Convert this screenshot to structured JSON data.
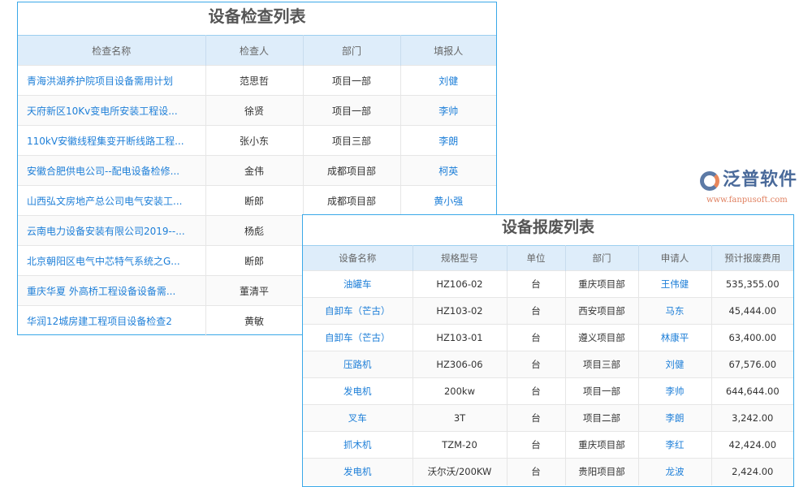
{
  "inspection": {
    "title": "设备检查列表",
    "headers": [
      "检查名称",
      "检查人",
      "部门",
      "填报人"
    ],
    "rows": [
      [
        "青海洪湖养护院项目设备需用计划",
        "范思哲",
        "项目一部",
        "刘健"
      ],
      [
        "天府新区10Kv变电所安装工程设...",
        "徐贤",
        "项目一部",
        "李帅"
      ],
      [
        "110kV安徽线程集变开断线路工程...",
        "张小东",
        "项目三部",
        "李朗"
      ],
      [
        "安徽合肥供电公司--配电设备检修...",
        "金伟",
        "成都项目部",
        "柯英"
      ],
      [
        "山西弘文房地产总公司电气安装工...",
        "断郎",
        "成都项目部",
        "黄小强"
      ],
      [
        "云南电力设备安装有限公司2019--...",
        "杨彪",
        "",
        ""
      ],
      [
        "北京朝阳区电气中芯特气系统之G...",
        "断郎",
        "",
        ""
      ],
      [
        "重庆华夏 外高桥工程设备设备需...",
        "董清平",
        "",
        ""
      ],
      [
        "华润12城房建工程项目设备检查2",
        "黄敏",
        "",
        ""
      ]
    ]
  },
  "scrap": {
    "title": "设备报废列表",
    "headers": [
      "设备名称",
      "规格型号",
      "单位",
      "部门",
      "申请人",
      "预计报废费用"
    ],
    "rows": [
      [
        "油罐车",
        "HZ106-02",
        "台",
        "重庆项目部",
        "王伟健",
        "535,355.00"
      ],
      [
        "自卸车（芒古）",
        "HZ103-02",
        "台",
        "西安项目部",
        "马东",
        "45,444.00"
      ],
      [
        "自卸车（芒古）",
        "HZ103-01",
        "台",
        "遵义项目部",
        "林康平",
        "63,400.00"
      ],
      [
        "压路机",
        "HZ306-06",
        "台",
        "项目三部",
        "刘健",
        "67,576.00"
      ],
      [
        "发电机",
        "200kw",
        "台",
        "项目一部",
        "李帅",
        "644,644.00"
      ],
      [
        "叉车",
        "3T",
        "台",
        "项目二部",
        "李朗",
        "3,242.00"
      ],
      [
        "抓木机",
        "TZM-20",
        "台",
        "重庆项目部",
        "李红",
        "42,424.00"
      ],
      [
        "发电机",
        "沃尔沃/200KW",
        "台",
        "贵阳项目部",
        "龙波",
        "2,424.00"
      ]
    ]
  },
  "watermark": {
    "name": "泛普软件",
    "url": "www.fanpusoft.com"
  },
  "colors": {
    "border": "#3aa8e8",
    "header_bg": "#deedfa",
    "link": "#1e7fd8"
  }
}
